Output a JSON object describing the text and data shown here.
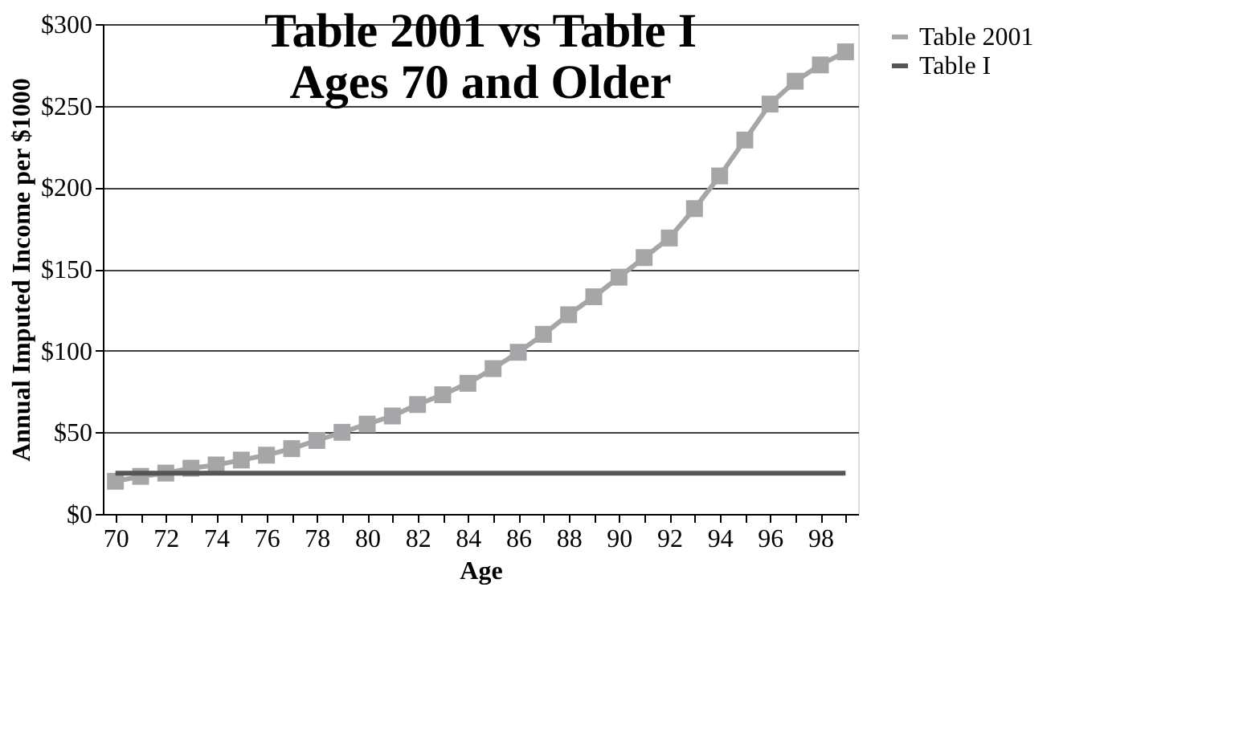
{
  "chart_data": {
    "type": "line",
    "title": [
      "Table 2001 vs Table I",
      "Ages 70 and Older"
    ],
    "xlabel": "Age",
    "ylabel": "Annual Imputed Income per $1000",
    "categories": [
      "70",
      null,
      "72",
      null,
      "74",
      null,
      "76",
      null,
      "78",
      null,
      "80",
      null,
      "82",
      null,
      "84",
      null,
      "86",
      null,
      "88",
      null,
      "90",
      null,
      "92",
      null,
      "94",
      null,
      "96",
      null,
      "98",
      null
    ],
    "series": [
      {
        "name": "Table 2001",
        "color": "#a6a6a8",
        "marker": "square",
        "values": [
          20,
          23,
          25,
          28,
          30,
          33,
          36,
          40,
          45,
          50,
          55,
          60,
          67,
          73,
          80,
          89,
          99,
          110,
          122,
          133,
          145,
          157,
          169,
          187,
          207,
          229,
          251,
          265,
          275,
          283
        ]
      },
      {
        "name": "Table I",
        "color": "#555555",
        "marker": "none",
        "values": [
          25,
          25,
          25,
          25,
          25,
          25,
          25,
          25,
          25,
          25,
          25,
          25,
          25,
          25,
          25,
          25,
          25,
          25,
          25,
          25,
          25,
          25,
          25,
          25,
          25,
          25,
          25,
          25,
          25,
          25
        ]
      }
    ],
    "ylim": [
      0,
      300
    ],
    "yticks": [
      {
        "value": 0,
        "label": "$0"
      },
      {
        "value": 50,
        "label": "$50"
      },
      {
        "value": 100,
        "label": "$100"
      },
      {
        "value": 150,
        "label": "$150"
      },
      {
        "value": 200,
        "label": "$200"
      },
      {
        "value": 250,
        "label": "$250"
      },
      {
        "value": 300,
        "label": "$300"
      }
    ],
    "grid": "y",
    "legend": "right"
  }
}
